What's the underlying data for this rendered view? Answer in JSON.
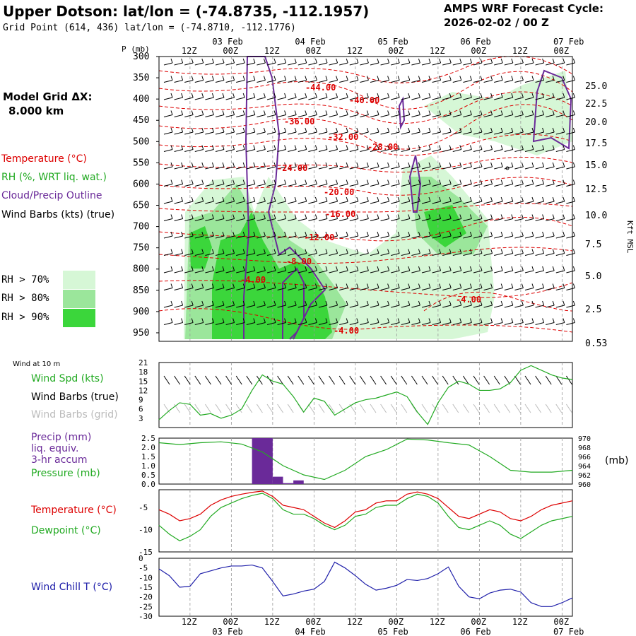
{
  "header": {
    "station": "Upper Dotson:  lat/lon = (-74.8735, -112.1957)",
    "grid_point": "Grid Point (614, 436) lat/lon = (-74.8710, -112.1776)",
    "cycle_title": "AMPS WRF Forecast Cycle:",
    "cycle_value": "2026-02-02 / 00  Z"
  },
  "model": {
    "label": "Model Grid ΔX:",
    "value": "8.000 km"
  },
  "legend": {
    "temperature": "Temperature (°C)",
    "rh": "RH (%, WRT liq. wat.)",
    "cloud": "Cloud/Precip Outline",
    "wind": "Wind Barbs (kts) (true)",
    "rh70": "RH > 70%",
    "rh80": "RH > 80%",
    "rh90": "RH > 90%"
  },
  "colors": {
    "temperature": "#dd0000",
    "rh": "#22aa22",
    "cloud": "#6a2a99",
    "rh70": "#d6f7d6",
    "rh80": "#9be69b",
    "rh90": "#3bd63b",
    "wind_grid": "#bbbbbb",
    "windchill": "#2020aa",
    "precip_bar": "#6a2a99"
  },
  "panels": {
    "wind10m_title": "Wind at 10 m",
    "wind_spd": "Wind Spd (kts)",
    "wind_barbs_true": "Wind Barbs (true)",
    "wind_barbs_grid": "Wind Barbs (grid)",
    "precip": "Precip (mm)",
    "precip_l2": "liq. equiv.",
    "precip_l3": "3-hr accum",
    "pressure": "Pressure (mb)",
    "pressure_unit": "(mb)",
    "temp": "Temperature (°C)",
    "dewpoint": "Dewpoint (°C)",
    "windchill": "Wind Chill T (°C)"
  },
  "chart_data": [
    {
      "type": "line",
      "panel": "time-height cross section",
      "ylabel": "P (mb)",
      "y2label": "Kft MSL",
      "pressure_levels": [
        300,
        350,
        400,
        450,
        500,
        550,
        600,
        650,
        700,
        750,
        800,
        850,
        900,
        950
      ],
      "kft_ticks": [
        "25.0",
        "22.5",
        "20.0",
        "17.5",
        "15.0",
        "12.5",
        "10.0",
        "7.5",
        "5.0",
        "2.5",
        "0.53"
      ],
      "top_time_labels": [
        "12Z",
        "00Z",
        "12Z",
        "00Z",
        "12Z",
        "00Z",
        "12Z",
        "00Z",
        "12Z",
        "00Z"
      ],
      "top_date_labels": [
        "03 Feb",
        "04 Feb",
        "05 Feb",
        "06 Feb",
        "07 Feb"
      ],
      "temperature_contour_labels": [
        "-44.00",
        "-40.00",
        "-36.00",
        "-32.00",
        "-28.00",
        "-24.00",
        "-20.00",
        "-16.00",
        "-12.00",
        "-8.00",
        "-4.00",
        "-4.00",
        "-4.00"
      ],
      "x_hours": [
        0,
        120
      ],
      "y_range_mb": [
        300,
        970
      ]
    },
    {
      "type": "line",
      "panel": "wind 10 m",
      "ylabel": "Wind Spd (kts)",
      "yticks": [
        3,
        6,
        9,
        12,
        15,
        18,
        21
      ],
      "ylim": [
        0,
        21
      ],
      "x_hours": [
        0,
        3,
        6,
        9,
        12,
        15,
        18,
        21,
        24,
        27,
        30,
        33,
        36,
        39,
        42,
        45,
        48,
        51,
        54,
        57,
        60,
        63,
        66,
        69,
        72,
        75,
        78,
        81,
        84,
        87,
        90,
        93,
        96,
        99,
        102,
        105,
        108,
        111,
        114,
        117,
        120
      ],
      "values": [
        2.5,
        5.5,
        8,
        7.5,
        4,
        4.5,
        3,
        4,
        6,
        12,
        17,
        15,
        14,
        10,
        5,
        9.5,
        8.5,
        4,
        6,
        8,
        9,
        9.5,
        10.5,
        11.5,
        10,
        5,
        1,
        8,
        13,
        15,
        14,
        12,
        12,
        12.5,
        14.5,
        18.5,
        20,
        18.5,
        17,
        16,
        15.5
      ]
    },
    {
      "type": "bar+line",
      "panel": "precip / pressure",
      "precip_yticks": [
        "2.5",
        "2.0",
        "1.5",
        "1.0",
        "0.5",
        "0.0"
      ],
      "precip_ylim": [
        0,
        2.5
      ],
      "precip_bars": [
        {
          "start": 27,
          "end": 33,
          "value": 2.5
        },
        {
          "start": 33,
          "end": 36,
          "value": 0.4
        },
        {
          "start": 36,
          "end": 39,
          "value": 0.05
        },
        {
          "start": 39,
          "end": 42,
          "value": 0.2
        }
      ],
      "pressure_yticks": [
        970,
        968,
        966,
        964,
        962,
        960
      ],
      "pressure_ylim": [
        960,
        970
      ],
      "x_hours": [
        0,
        6,
        12,
        18,
        24,
        30,
        36,
        42,
        48,
        54,
        60,
        66,
        72,
        78,
        84,
        90,
        96,
        102,
        108,
        114,
        120
      ],
      "pressure": [
        969,
        968.6,
        969,
        969.2,
        968.7,
        967,
        964,
        962,
        961,
        963,
        966,
        967.5,
        969.8,
        969.6,
        969,
        968.5,
        966,
        963,
        962.6,
        962.6,
        963
      ]
    },
    {
      "type": "line",
      "panel": "temperature / dewpoint",
      "yticks": [
        -5,
        -10,
        -15
      ],
      "ylim": [
        -15,
        -1
      ],
      "x_hours": [
        0,
        3,
        6,
        9,
        12,
        15,
        18,
        21,
        24,
        27,
        30,
        33,
        36,
        39,
        42,
        45,
        48,
        51,
        54,
        57,
        60,
        63,
        66,
        69,
        72,
        75,
        78,
        81,
        84,
        87,
        90,
        93,
        96,
        99,
        102,
        105,
        108,
        111,
        114,
        117,
        120
      ],
      "series": [
        {
          "name": "Temperature",
          "values": [
            -5.5,
            -6.5,
            -8,
            -7.5,
            -6.5,
            -4.5,
            -3.3,
            -2.5,
            -2,
            -1.6,
            -1.3,
            -2.5,
            -4.5,
            -5,
            -5.5,
            -7,
            -8.5,
            -9.5,
            -8,
            -6,
            -5.5,
            -4,
            -3.5,
            -3.5,
            -2,
            -1.5,
            -2,
            -3,
            -5,
            -7,
            -7.5,
            -6.5,
            -5.5,
            -6,
            -7.5,
            -8,
            -7,
            -5.5,
            -4.5,
            -4,
            -3.5
          ]
        },
        {
          "name": "Dewpoint",
          "values": [
            -9,
            -11,
            -12.5,
            -11.5,
            -10,
            -7,
            -5,
            -4,
            -3,
            -2.3,
            -1.8,
            -3,
            -5.5,
            -6.5,
            -6.5,
            -7.5,
            -9,
            -10,
            -9,
            -7,
            -6.5,
            -5,
            -4.5,
            -4.5,
            -3,
            -2,
            -2.5,
            -4,
            -7,
            -9.5,
            -10,
            -9,
            -8,
            -9,
            -11,
            -12,
            -10.5,
            -9,
            -8,
            -7.5,
            -7
          ]
        }
      ]
    },
    {
      "type": "line",
      "panel": "wind chill",
      "yticks": [
        0,
        -5,
        -10,
        -15,
        -20,
        -25,
        -30
      ],
      "ylim": [
        -30,
        0
      ],
      "x_hours": [
        0,
        3,
        6,
        9,
        12,
        15,
        18,
        21,
        24,
        27,
        30,
        33,
        36,
        39,
        42,
        45,
        48,
        51,
        54,
        57,
        60,
        63,
        66,
        69,
        72,
        75,
        78,
        81,
        84,
        87,
        90,
        93,
        96,
        99,
        102,
        105,
        108,
        111,
        114,
        117,
        120
      ],
      "values": [
        -5.5,
        -9,
        -15,
        -14.5,
        -8,
        -6.5,
        -5,
        -4,
        -4,
        -3.5,
        -5,
        -12,
        -19.5,
        -18.5,
        -17,
        -16,
        -12,
        -2,
        -5,
        -9,
        -13.5,
        -16.5,
        -15.5,
        -14,
        -11,
        -11.5,
        -10.5,
        -8,
        -4.5,
        -14.5,
        -20,
        -21,
        -18,
        -16.5,
        -16,
        -17.5,
        -23,
        -25,
        -25,
        -23,
        -20.5
      ]
    },
    {
      "type": "axis",
      "panel": "bottom time axis",
      "time_labels": [
        "12Z",
        "00Z",
        "12Z",
        "00Z",
        "12Z",
        "00Z",
        "12Z",
        "00Z",
        "12Z",
        "00Z"
      ],
      "date_labels": [
        "03 Feb",
        "04 Feb",
        "05 Feb",
        "06 Feb",
        "07 Feb"
      ]
    }
  ]
}
